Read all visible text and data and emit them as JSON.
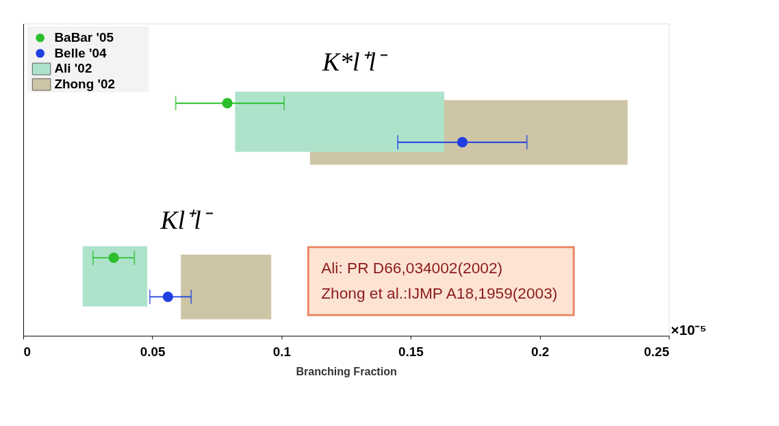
{
  "chart_data": {
    "type": "scatter",
    "orientation": "horizontal",
    "categories": [
      null,
      null
    ],
    "xlabel": "Branching Fraction",
    "xlim": [
      0,
      0.25
    ],
    "xticks": [
      0,
      0.05,
      0.1,
      0.15,
      0.2,
      0.25
    ],
    "tick_labels": "x",
    "grid": false,
    "legend": "top left",
    "marker": "circle",
    "annotations": [
      "K*l⁺l⁻",
      "Kl⁺l⁻",
      "Ali: PR D66,034002(2002)",
      "Zhong et al.:IJMP A18,1959(2003)",
      "×10⁻⁵"
    ],
    "series": [
      {
        "name": "BaBar '05",
        "color": "#2cbf2c",
        "values": [
          0.079,
          0.035
        ],
        "errors": [
          [
            0.059,
            0.101
          ],
          [
            0.027,
            0.043
          ]
        ]
      },
      {
        "name": "Belle '04",
        "color": "#1f3fe0",
        "values": [
          0.17,
          0.056
        ],
        "errors": [
          [
            0.145,
            0.195
          ],
          [
            0.049,
            0.065
          ]
        ]
      },
      {
        "name": "Ali '02",
        "type": "bar",
        "color": "#aee3cb",
        "base": [
          0.082,
          0.023
        ],
        "values": [
          0.081,
          0.025
        ]
      },
      {
        "name": "Zhong '02",
        "type": "bar",
        "color": "#cdc5a5",
        "base": [
          0.111,
          0.061
        ],
        "values": [
          0.123,
          0.035
        ]
      }
    ]
  }
}
